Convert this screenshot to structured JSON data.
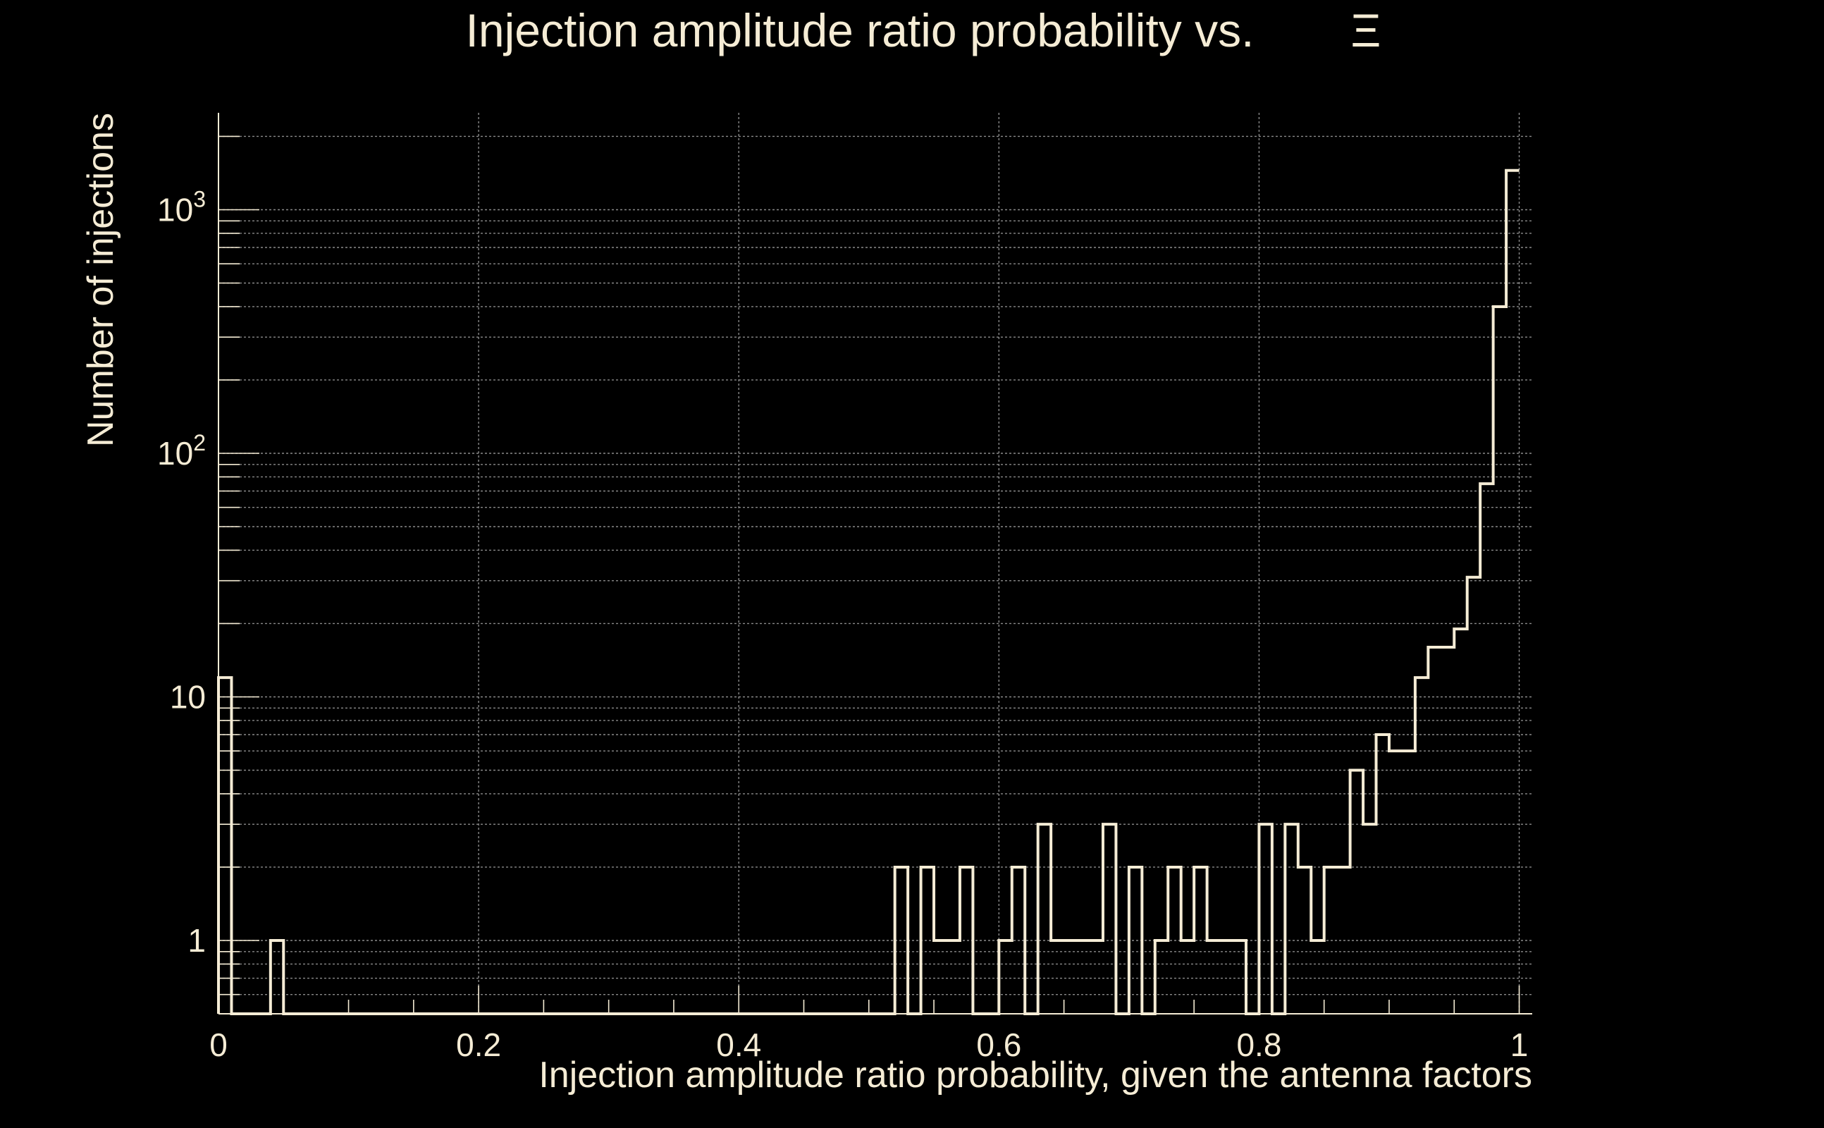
{
  "chart_data": {
    "type": "histogram",
    "title": "Injection amplitude ratio probability vs.",
    "title_symbol": "Ξ",
    "xlabel": "Injection amplitude ratio probability, given the antenna factors",
    "ylabel": "Number of injections",
    "xlim": [
      0,
      1.01
    ],
    "ylim": [
      0.5,
      2500
    ],
    "yscale": "log",
    "grid": true,
    "x_ticks": [
      {
        "value": 0,
        "label": "0"
      },
      {
        "value": 0.2,
        "label": "0.2"
      },
      {
        "value": 0.4,
        "label": "0.4"
      },
      {
        "value": 0.6,
        "label": "0.6"
      },
      {
        "value": 0.8,
        "label": "0.8"
      },
      {
        "value": 1,
        "label": "1"
      }
    ],
    "y_ticks": [
      {
        "value": 1,
        "base": "1",
        "exp": ""
      },
      {
        "value": 10,
        "base": "10",
        "exp": ""
      },
      {
        "value": 100,
        "base": "10",
        "exp": "2"
      },
      {
        "value": 1000,
        "base": "10",
        "exp": "3"
      }
    ],
    "bin_width": 0.01,
    "bin_start": 0.0,
    "series": [
      {
        "name": "injections",
        "values": [
          12,
          0,
          0,
          0,
          1,
          0,
          0,
          0,
          0,
          0,
          0,
          0,
          0,
          0,
          0,
          0,
          0,
          0,
          0,
          0,
          0,
          0,
          0,
          0,
          0,
          0,
          0,
          0,
          0,
          0,
          0,
          0,
          0,
          0,
          0,
          0,
          0,
          0,
          0,
          0,
          0,
          0,
          0,
          0,
          0,
          0,
          0,
          0,
          0,
          0,
          0,
          0,
          2,
          0,
          2,
          1,
          1,
          2,
          0,
          0,
          1,
          2,
          0,
          3,
          1,
          1,
          1,
          1,
          3,
          0,
          2,
          0,
          1,
          2,
          1,
          2,
          1,
          1,
          1,
          0,
          3,
          0,
          3,
          2,
          1,
          2,
          2,
          5,
          3,
          7,
          6,
          6,
          12,
          16,
          16,
          19,
          31,
          75,
          400,
          1450
        ]
      }
    ]
  }
}
